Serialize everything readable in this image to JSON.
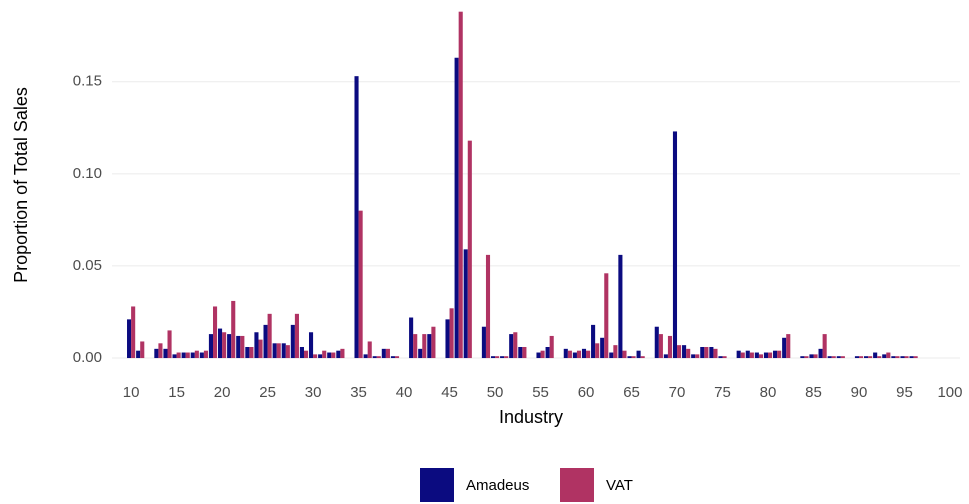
{
  "chart_data": {
    "type": "bar",
    "x_label": "Industry",
    "y_label": "Proportion of Total Sales",
    "x": [
      10,
      11,
      13,
      14,
      15,
      16,
      17,
      18,
      19,
      20,
      21,
      22,
      23,
      24,
      25,
      26,
      27,
      28,
      29,
      30,
      31,
      32,
      33,
      35,
      36,
      37,
      38,
      39,
      41,
      42,
      43,
      45,
      46,
      47,
      49,
      50,
      51,
      52,
      53,
      55,
      56,
      58,
      59,
      60,
      61,
      62,
      63,
      64,
      65,
      66,
      68,
      69,
      70,
      71,
      72,
      73,
      74,
      75,
      77,
      78,
      79,
      80,
      81,
      82,
      84,
      85,
      86,
      87,
      88,
      90,
      91,
      92,
      93,
      94,
      95,
      96
    ],
    "series": [
      {
        "name": "Amadeus",
        "color": "#0b0b80",
        "values": [
          0.021,
          0.004,
          0.005,
          0.005,
          0.002,
          0.003,
          0.003,
          0.003,
          0.013,
          0.016,
          0.013,
          0.012,
          0.006,
          0.014,
          0.018,
          0.008,
          0.008,
          0.018,
          0.006,
          0.014,
          0.002,
          0.003,
          0.004,
          0.153,
          0.002,
          0.001,
          0.005,
          0.001,
          0.022,
          0.005,
          0.013,
          0.021,
          0.163,
          0.059,
          0.017,
          0.001,
          0.001,
          0.013,
          0.006,
          0.003,
          0.006,
          0.005,
          0.003,
          0.005,
          0.018,
          0.011,
          0.003,
          0.056,
          0.001,
          0.004,
          0.017,
          0.002,
          0.123,
          0.007,
          0.002,
          0.006,
          0.006,
          0.001,
          0.004,
          0.004,
          0.003,
          0.003,
          0.004,
          0.011,
          0.001,
          0.002,
          0.005,
          0.001,
          0.001,
          0.001,
          0.001,
          0.003,
          0.002,
          0.001,
          0.001,
          0.001
        ]
      },
      {
        "name": "VAT",
        "color": "#b03363",
        "values": [
          0.028,
          0.009,
          0.008,
          0.015,
          0.003,
          0.003,
          0.004,
          0.004,
          0.028,
          0.014,
          0.031,
          0.012,
          0.006,
          0.01,
          0.024,
          0.008,
          0.007,
          0.024,
          0.004,
          0.002,
          0.004,
          0.003,
          0.005,
          0.08,
          0.009,
          0.001,
          0.005,
          0.001,
          0.013,
          0.013,
          0.017,
          0.027,
          0.188,
          0.118,
          0.056,
          0.001,
          0.001,
          0.014,
          0.006,
          0.004,
          0.012,
          0.004,
          0.004,
          0.004,
          0.008,
          0.046,
          0.007,
          0.004,
          0.001,
          0.001,
          0.013,
          0.012,
          0.007,
          0.005,
          0.002,
          0.006,
          0.005,
          0.001,
          0.003,
          0.003,
          0.002,
          0.003,
          0.004,
          0.013,
          0.001,
          0.002,
          0.013,
          0.001,
          0.001,
          0.001,
          0.001,
          0.001,
          0.003,
          0.001,
          0.001,
          0.001
        ]
      }
    ],
    "xlim": [
      7.9,
      101.1
    ],
    "xticks": [
      10,
      15,
      20,
      25,
      30,
      35,
      40,
      45,
      50,
      55,
      60,
      65,
      70,
      75,
      80,
      85,
      90,
      95,
      100
    ],
    "ylim": [
      -0.0092,
      0.19
    ],
    "yticks": [
      {
        "value": 0,
        "label": "0.00"
      },
      {
        "value": 0.05,
        "label": "0.05"
      },
      {
        "value": 0.1,
        "label": "0.10"
      },
      {
        "value": 0.15,
        "label": "0.15"
      }
    ],
    "grid": true
  }
}
